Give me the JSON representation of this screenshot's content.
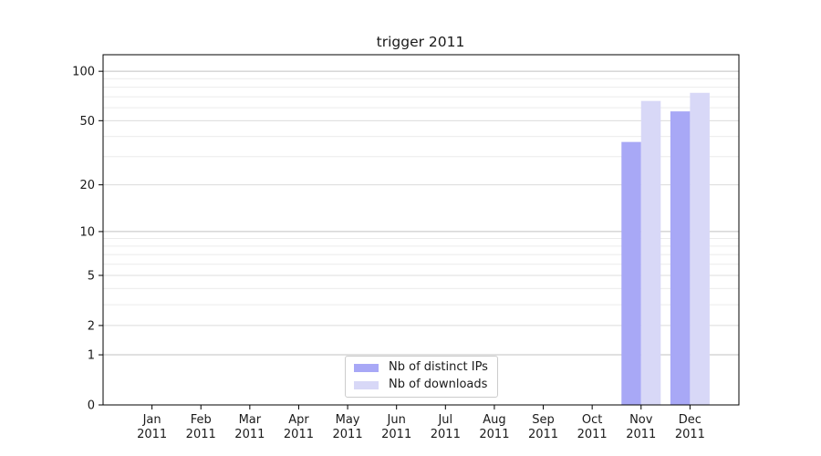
{
  "chart_data": {
    "type": "bar",
    "title": "trigger 2011",
    "categories": [
      "Jan",
      "Feb",
      "Mar",
      "Apr",
      "May",
      "Jun",
      "Jul",
      "Aug",
      "Sep",
      "Oct",
      "Nov",
      "Dec"
    ],
    "category_year": "2011",
    "series": [
      {
        "name": "Nb of distinct IPs",
        "color": "#a8a8f6",
        "values": [
          0,
          0,
          0,
          0,
          0,
          0,
          0,
          0,
          0,
          0,
          37,
          57
        ]
      },
      {
        "name": "Nb of downloads",
        "color": "#d8d8f7",
        "values": [
          0,
          0,
          0,
          0,
          0,
          0,
          0,
          0,
          0,
          0,
          66,
          74
        ]
      }
    ],
    "y_axis": {
      "scale": "log1p",
      "max": 126,
      "ticks": [
        0,
        1,
        2,
        5,
        10,
        20,
        50,
        100
      ],
      "gridlines_decade": [
        1,
        10,
        100
      ],
      "gridlines_mid": [
        2,
        5,
        20,
        50
      ],
      "gridlines_minor": [
        3,
        4,
        6,
        7,
        8,
        9,
        30,
        40,
        60,
        70,
        80,
        90
      ]
    },
    "grid": true,
    "legend_position": "lower center",
    "colors": {
      "grid_decade": "#c0c0c0",
      "grid_mid": "#dcdcdc",
      "grid_minor": "#ebebeb",
      "axis": "#000000",
      "text": "#1a1a1a"
    }
  }
}
